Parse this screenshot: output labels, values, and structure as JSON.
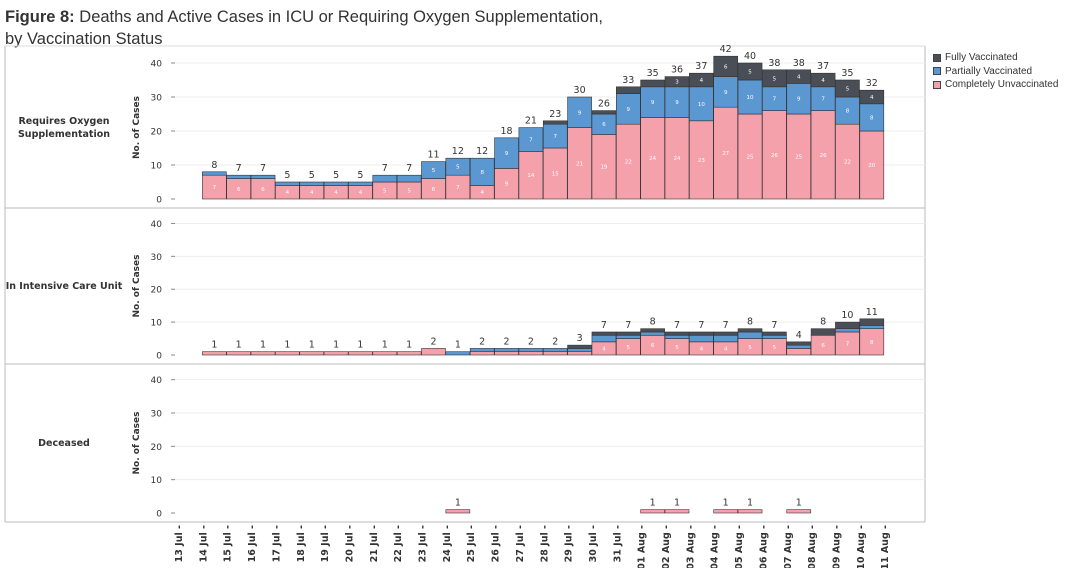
{
  "title": {
    "prefix": "Figure 8:",
    "line1": " Deaths and Active Cases in ICU or Requiring Oxygen Supplementation,",
    "line2": "by Vaccination Status"
  },
  "colors": {
    "fully": "#4a4f57",
    "partial": "#5b97d1",
    "unvax": "#f4a1ab"
  },
  "chart_data": {
    "type": "bar",
    "stacked": true,
    "categories": [
      "13 Jul",
      "14 Jul",
      "15 Jul",
      "16 Jul",
      "17 Jul",
      "18 Jul",
      "19 Jul",
      "20 Jul",
      "21 Jul",
      "22 Jul",
      "23 Jul",
      "24 Jul",
      "25 Jul",
      "26 Jul",
      "27 Jul",
      "28 Jul",
      "29 Jul",
      "30 Jul",
      "31 Jul",
      "01 Aug",
      "02 Aug",
      "03 Aug",
      "04 Aug",
      "05 Aug",
      "06 Aug",
      "07 Aug",
      "08 Aug",
      "09 Aug",
      "10 Aug",
      "11 Aug"
    ],
    "ylabel": "No. of Cases",
    "yticks": [
      0,
      10,
      20,
      30,
      40
    ],
    "ylim": [
      0,
      45
    ],
    "legend": [
      {
        "key": "fully",
        "label": "Fully Vaccinated"
      },
      {
        "key": "partial",
        "label": "Partially Vaccinated"
      },
      {
        "key": "unvax",
        "label": "Completely Unvaccinated"
      }
    ],
    "panels": [
      {
        "name": "Requires Oxygen Supplementation",
        "label_lines": [
          "Requires Oxygen",
          "Supplementation"
        ],
        "totals": [
          null,
          8,
          7,
          7,
          5,
          5,
          5,
          5,
          7,
          7,
          11,
          12,
          12,
          18,
          21,
          23,
          30,
          26,
          33,
          35,
          36,
          37,
          42,
          40,
          38,
          38,
          37,
          35,
          32,
          null
        ],
        "unvax": [
          null,
          7,
          6,
          6,
          4,
          4,
          4,
          4,
          5,
          5,
          6,
          7,
          4,
          9,
          14,
          15,
          21,
          19,
          22,
          24,
          24,
          23,
          27,
          25,
          26,
          25,
          26,
          22,
          20,
          null
        ],
        "partial": [
          null,
          1,
          1,
          1,
          1,
          1,
          1,
          1,
          2,
          2,
          5,
          5,
          8,
          9,
          7,
          7,
          9,
          6,
          9,
          9,
          9,
          10,
          9,
          10,
          7,
          9,
          7,
          8,
          8,
          null
        ],
        "fully": [
          null,
          0,
          0,
          0,
          0,
          0,
          0,
          0,
          0,
          0,
          0,
          0,
          0,
          0,
          0,
          1,
          0,
          1,
          2,
          2,
          3,
          4,
          6,
          5,
          5,
          4,
          4,
          5,
          4,
          null
        ]
      },
      {
        "name": "In Intensive Care Unit",
        "label_lines": [
          "In Intensive Care Unit"
        ],
        "totals": [
          null,
          1,
          1,
          1,
          1,
          1,
          1,
          1,
          1,
          1,
          2,
          1,
          2,
          2,
          2,
          2,
          3,
          7,
          7,
          8,
          7,
          7,
          7,
          8,
          7,
          4,
          8,
          10,
          11,
          null
        ],
        "unvax": [
          null,
          1,
          1,
          1,
          1,
          1,
          1,
          1,
          1,
          1,
          2,
          0,
          1,
          1,
          1,
          1,
          1,
          4,
          5,
          6,
          5,
          4,
          4,
          5,
          5,
          2,
          6,
          7,
          8,
          null
        ],
        "partial": [
          null,
          0,
          0,
          0,
          0,
          0,
          0,
          0,
          0,
          0,
          0,
          1,
          1,
          1,
          1,
          1,
          1,
          2,
          1,
          1,
          1,
          2,
          2,
          2,
          1,
          1,
          0,
          1,
          1,
          null
        ],
        "fully": [
          null,
          0,
          0,
          0,
          0,
          0,
          0,
          0,
          0,
          0,
          0,
          0,
          0,
          0,
          0,
          0,
          1,
          1,
          1,
          1,
          1,
          1,
          1,
          1,
          1,
          1,
          2,
          2,
          2,
          null
        ]
      },
      {
        "name": "Deceased",
        "label_lines": [
          "Deceased"
        ],
        "totals": [
          null,
          null,
          null,
          null,
          null,
          null,
          null,
          null,
          null,
          null,
          null,
          1,
          null,
          null,
          null,
          null,
          null,
          null,
          null,
          1,
          1,
          null,
          1,
          1,
          null,
          1,
          null,
          null,
          null,
          null
        ],
        "unvax": [
          null,
          null,
          null,
          null,
          null,
          null,
          null,
          null,
          null,
          null,
          null,
          1,
          null,
          null,
          null,
          null,
          null,
          null,
          null,
          1,
          1,
          null,
          1,
          1,
          null,
          1,
          null,
          null,
          null,
          null
        ],
        "partial": [
          null,
          null,
          null,
          null,
          null,
          null,
          null,
          null,
          null,
          null,
          null,
          0,
          null,
          null,
          null,
          null,
          null,
          null,
          null,
          0,
          0,
          null,
          0,
          0,
          null,
          0,
          null,
          null,
          null,
          null
        ],
        "fully": [
          null,
          null,
          null,
          null,
          null,
          null,
          null,
          null,
          null,
          null,
          null,
          0,
          null,
          null,
          null,
          null,
          null,
          null,
          null,
          0,
          0,
          null,
          0,
          0,
          null,
          0,
          null,
          null,
          null,
          null
        ]
      }
    ]
  }
}
